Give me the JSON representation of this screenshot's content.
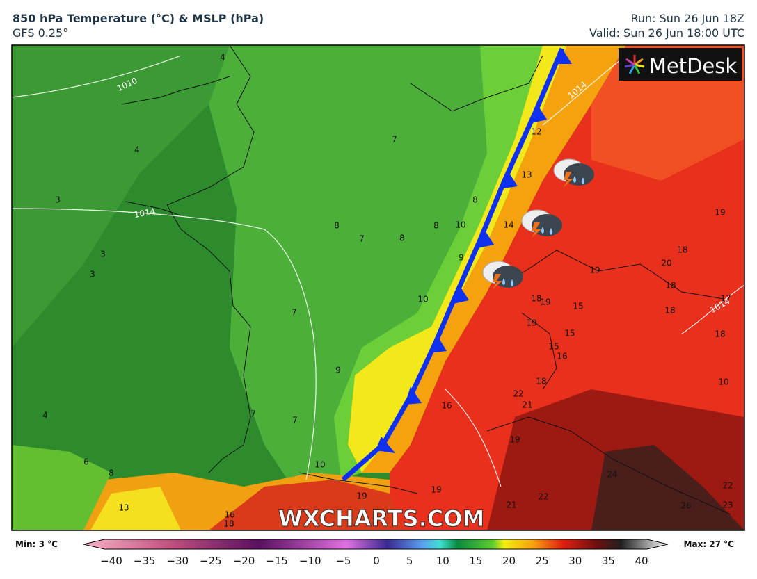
{
  "header": {
    "title": "850 hPa Temperature (°C) & MSLP (hPa)",
    "subtitle": "GFS 0.25°",
    "run": "Run: Sun 26 Jun 18Z",
    "valid": "Valid: Sun 26 Jun 18:00 UTC"
  },
  "logo": "MetDesk",
  "watermark": "WXCHARTS.COM",
  "map": {
    "isobar_labels": [
      "1010",
      "1014",
      "1014",
      "1014"
    ],
    "labels": [
      "4",
      "4",
      "3",
      "3",
      "3",
      "8",
      "7",
      "8",
      "8",
      "10",
      "8",
      "7",
      "9",
      "10",
      "7",
      "9",
      "7",
      "7",
      "4",
      "6",
      "8",
      "10",
      "13",
      "16",
      "18",
      "19",
      "19",
      "16",
      "19",
      "21",
      "22",
      "22",
      "21",
      "18",
      "16",
      "15",
      "15",
      "15",
      "19",
      "18",
      "19",
      "19",
      "18",
      "18",
      "20",
      "18",
      "19",
      "17",
      "18",
      "10",
      "14",
      "13",
      "12",
      "22",
      "23",
      "26",
      "24"
    ]
  },
  "legend": {
    "min_label": "Min: 3 °C",
    "max_label": "Max: 27 °C",
    "ticks": [
      "−40",
      "−35",
      "−30",
      "−25",
      "−20",
      "−15",
      "−10",
      "−5",
      "0",
      "5",
      "10",
      "15",
      "20",
      "25",
      "30",
      "35",
      "40"
    ]
  }
}
